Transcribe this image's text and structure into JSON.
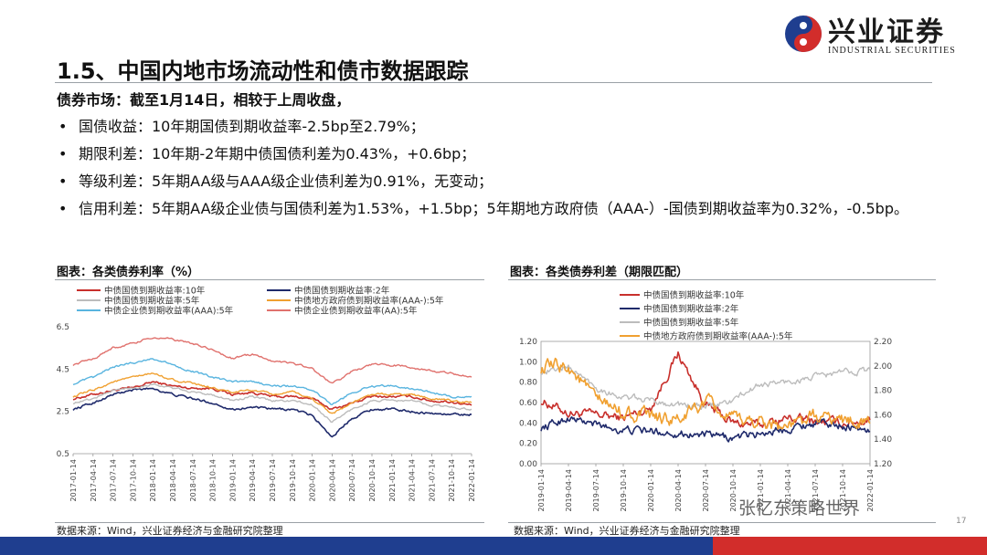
{
  "brand": {
    "name_cn": "兴业证券",
    "name_en": "INDUSTRIAL SECURITIES"
  },
  "page": {
    "title": "1.5、中国内地市场流动性和债市数据跟踪",
    "lead": "债券市场：截至1月14日，相较于上周收盘，",
    "page_number": "17",
    "watermark": "张忆东策略世界"
  },
  "bullets": [
    "国债收益：10年期国债到期收益率-2.5bp至2.79%；",
    "期限利差：10年期-2年期中债国债利差为0.43%，+0.6bp；",
    "等级利差：5年期AA级与AAA级企业债利差为0.91%，无变动；",
    "信用利差：5年期AA级企业债与国债利差为1.53%，+1.5bp；5年期地方政府债（AAA-）-国债到期收益率为0.32%，-0.5bp。"
  ],
  "charts": {
    "left": {
      "title": "图表：各类债券利率（%）",
      "source": "数据来源：Wind，兴业证券经济与金融研究院整理"
    },
    "right": {
      "title": "图表：各类债券利差（期限匹配）",
      "source": "数据来源：Wind，兴业证券经济与金融研究院整理"
    }
  },
  "colors": {
    "brand_blue": "#1f3e8f",
    "brand_red": "#d22d2b"
  },
  "chart_data": [
    {
      "type": "line",
      "title": "图表：各类债券利率（%）",
      "ylim": [
        0.5,
        6.5
      ],
      "yticks": [
        0.5,
        2.5,
        4.5,
        6.5
      ],
      "xticks": [
        "2017-01-14",
        "2017-04-14",
        "2017-07-14",
        "2017-10-14",
        "2018-01-14",
        "2018-04-14",
        "2018-07-14",
        "2018-10-14",
        "2019-01-14",
        "2019-04-14",
        "2019-07-14",
        "2019-10-14",
        "2020-01-14",
        "2020-04-14",
        "2020-07-14",
        "2020-10-14",
        "2021-01-14",
        "2021-04-14",
        "2021-07-14",
        "2021-10-14",
        "2022-01-14"
      ],
      "legend_position": "top",
      "series": [
        {
          "name": "中债国债到期收益率:10年",
          "color": "#c8302c",
          "width": 1.6,
          "values": [
            3.1,
            3.3,
            3.5,
            3.6,
            3.9,
            3.7,
            3.6,
            3.6,
            3.3,
            3.4,
            3.2,
            3.2,
            3.1,
            2.6,
            2.9,
            3.2,
            3.2,
            3.2,
            3.0,
            2.95,
            2.79
          ]
        },
        {
          "name": "中债国债到期收益率:2年",
          "color": "#1f2a6b",
          "width": 1.6,
          "values": [
            2.6,
            2.9,
            3.3,
            3.5,
            3.6,
            3.3,
            3.1,
            2.9,
            2.6,
            2.7,
            2.6,
            2.6,
            2.3,
            1.3,
            2.2,
            2.6,
            2.6,
            2.5,
            2.4,
            2.35,
            2.36
          ]
        },
        {
          "name": "中债国债到期收益率:5年",
          "color": "#bcbcbc",
          "width": 1.4,
          "values": [
            2.9,
            3.1,
            3.5,
            3.6,
            3.8,
            3.6,
            3.4,
            3.3,
            3.0,
            3.2,
            3.0,
            3.0,
            2.8,
            2.0,
            2.6,
            3.0,
            3.0,
            3.0,
            2.8,
            2.7,
            2.6
          ]
        },
        {
          "name": "中债地方政府债到期收益率(AAA-):5年",
          "color": "#f0a030",
          "width": 1.4,
          "values": [
            3.2,
            3.5,
            3.9,
            4.1,
            4.3,
            4.0,
            3.8,
            3.6,
            3.4,
            3.5,
            3.3,
            3.4,
            3.1,
            2.4,
            2.9,
            3.3,
            3.3,
            3.3,
            3.1,
            3.0,
            2.92
          ]
        },
        {
          "name": "中债企业债到期收益率(AAA):5年",
          "color": "#58b4df",
          "width": 1.4,
          "values": [
            3.8,
            4.1,
            4.6,
            4.8,
            5.0,
            4.7,
            4.4,
            4.1,
            3.9,
            3.9,
            3.7,
            3.7,
            3.5,
            2.8,
            3.4,
            3.7,
            3.7,
            3.6,
            3.4,
            3.2,
            3.2
          ]
        },
        {
          "name": "中债企业债到期收益率(AA):5年",
          "color": "#e0716d",
          "width": 1.4,
          "values": [
            4.7,
            5.0,
            5.5,
            5.7,
            6.0,
            5.9,
            5.7,
            5.4,
            5.0,
            5.2,
            4.9,
            4.8,
            4.5,
            3.8,
            4.4,
            4.7,
            4.7,
            4.6,
            4.4,
            4.3,
            4.12
          ]
        }
      ]
    },
    {
      "type": "line",
      "title": "图表：各类债券利差（期限匹配）",
      "ylim": [
        0.0,
        1.2
      ],
      "yticks": [
        0.0,
        0.2,
        0.4,
        0.6,
        0.8,
        1.0,
        1.2
      ],
      "y2lim": [
        1.2,
        2.2
      ],
      "y2ticks": [
        1.2,
        1.4,
        1.6,
        1.8,
        2.0,
        2.2
      ],
      "xticks": [
        "2019-01-14",
        "2019-04-14",
        "2019-07-14",
        "2019-10-14",
        "2020-01-14",
        "2020-04-14",
        "2020-07-14",
        "2020-10-14",
        "2021-01-14",
        "2021-04-14",
        "2021-07-14",
        "2021-10-14",
        "2022-01-14"
      ],
      "legend_position": "top",
      "series": [
        {
          "name": "中债国债到期收益率:10年",
          "axis": "left",
          "color": "#c8302c",
          "width": 1.6,
          "values": [
            0.62,
            0.5,
            0.48,
            0.45,
            0.55,
            1.08,
            0.58,
            0.4,
            0.38,
            0.45,
            0.42,
            0.4,
            0.43
          ]
        },
        {
          "name": "中债国债到期收益率:2年",
          "axis": "left",
          "color": "#1f2a6b",
          "width": 1.6,
          "values": [
            0.35,
            0.45,
            0.38,
            0.33,
            0.32,
            0.3,
            0.28,
            0.25,
            0.3,
            0.35,
            0.4,
            0.38,
            0.32
          ]
        },
        {
          "name": "中债国债到期收益率:5年",
          "axis": "left",
          "color": "#bcbcbc",
          "width": 1.4,
          "values": [
            0.9,
            0.95,
            0.75,
            0.65,
            0.62,
            0.58,
            0.55,
            0.62,
            0.78,
            0.8,
            0.85,
            0.9,
            0.92
          ]
        },
        {
          "name": "中债地方政府债到期收益率(AAA-):5年",
          "axis": "right",
          "color": "#f0a030",
          "width": 1.6,
          "values": [
            1.98,
            2.0,
            1.72,
            1.62,
            1.58,
            1.55,
            1.7,
            1.55,
            1.55,
            1.5,
            1.58,
            1.56,
            1.53
          ]
        }
      ]
    }
  ]
}
